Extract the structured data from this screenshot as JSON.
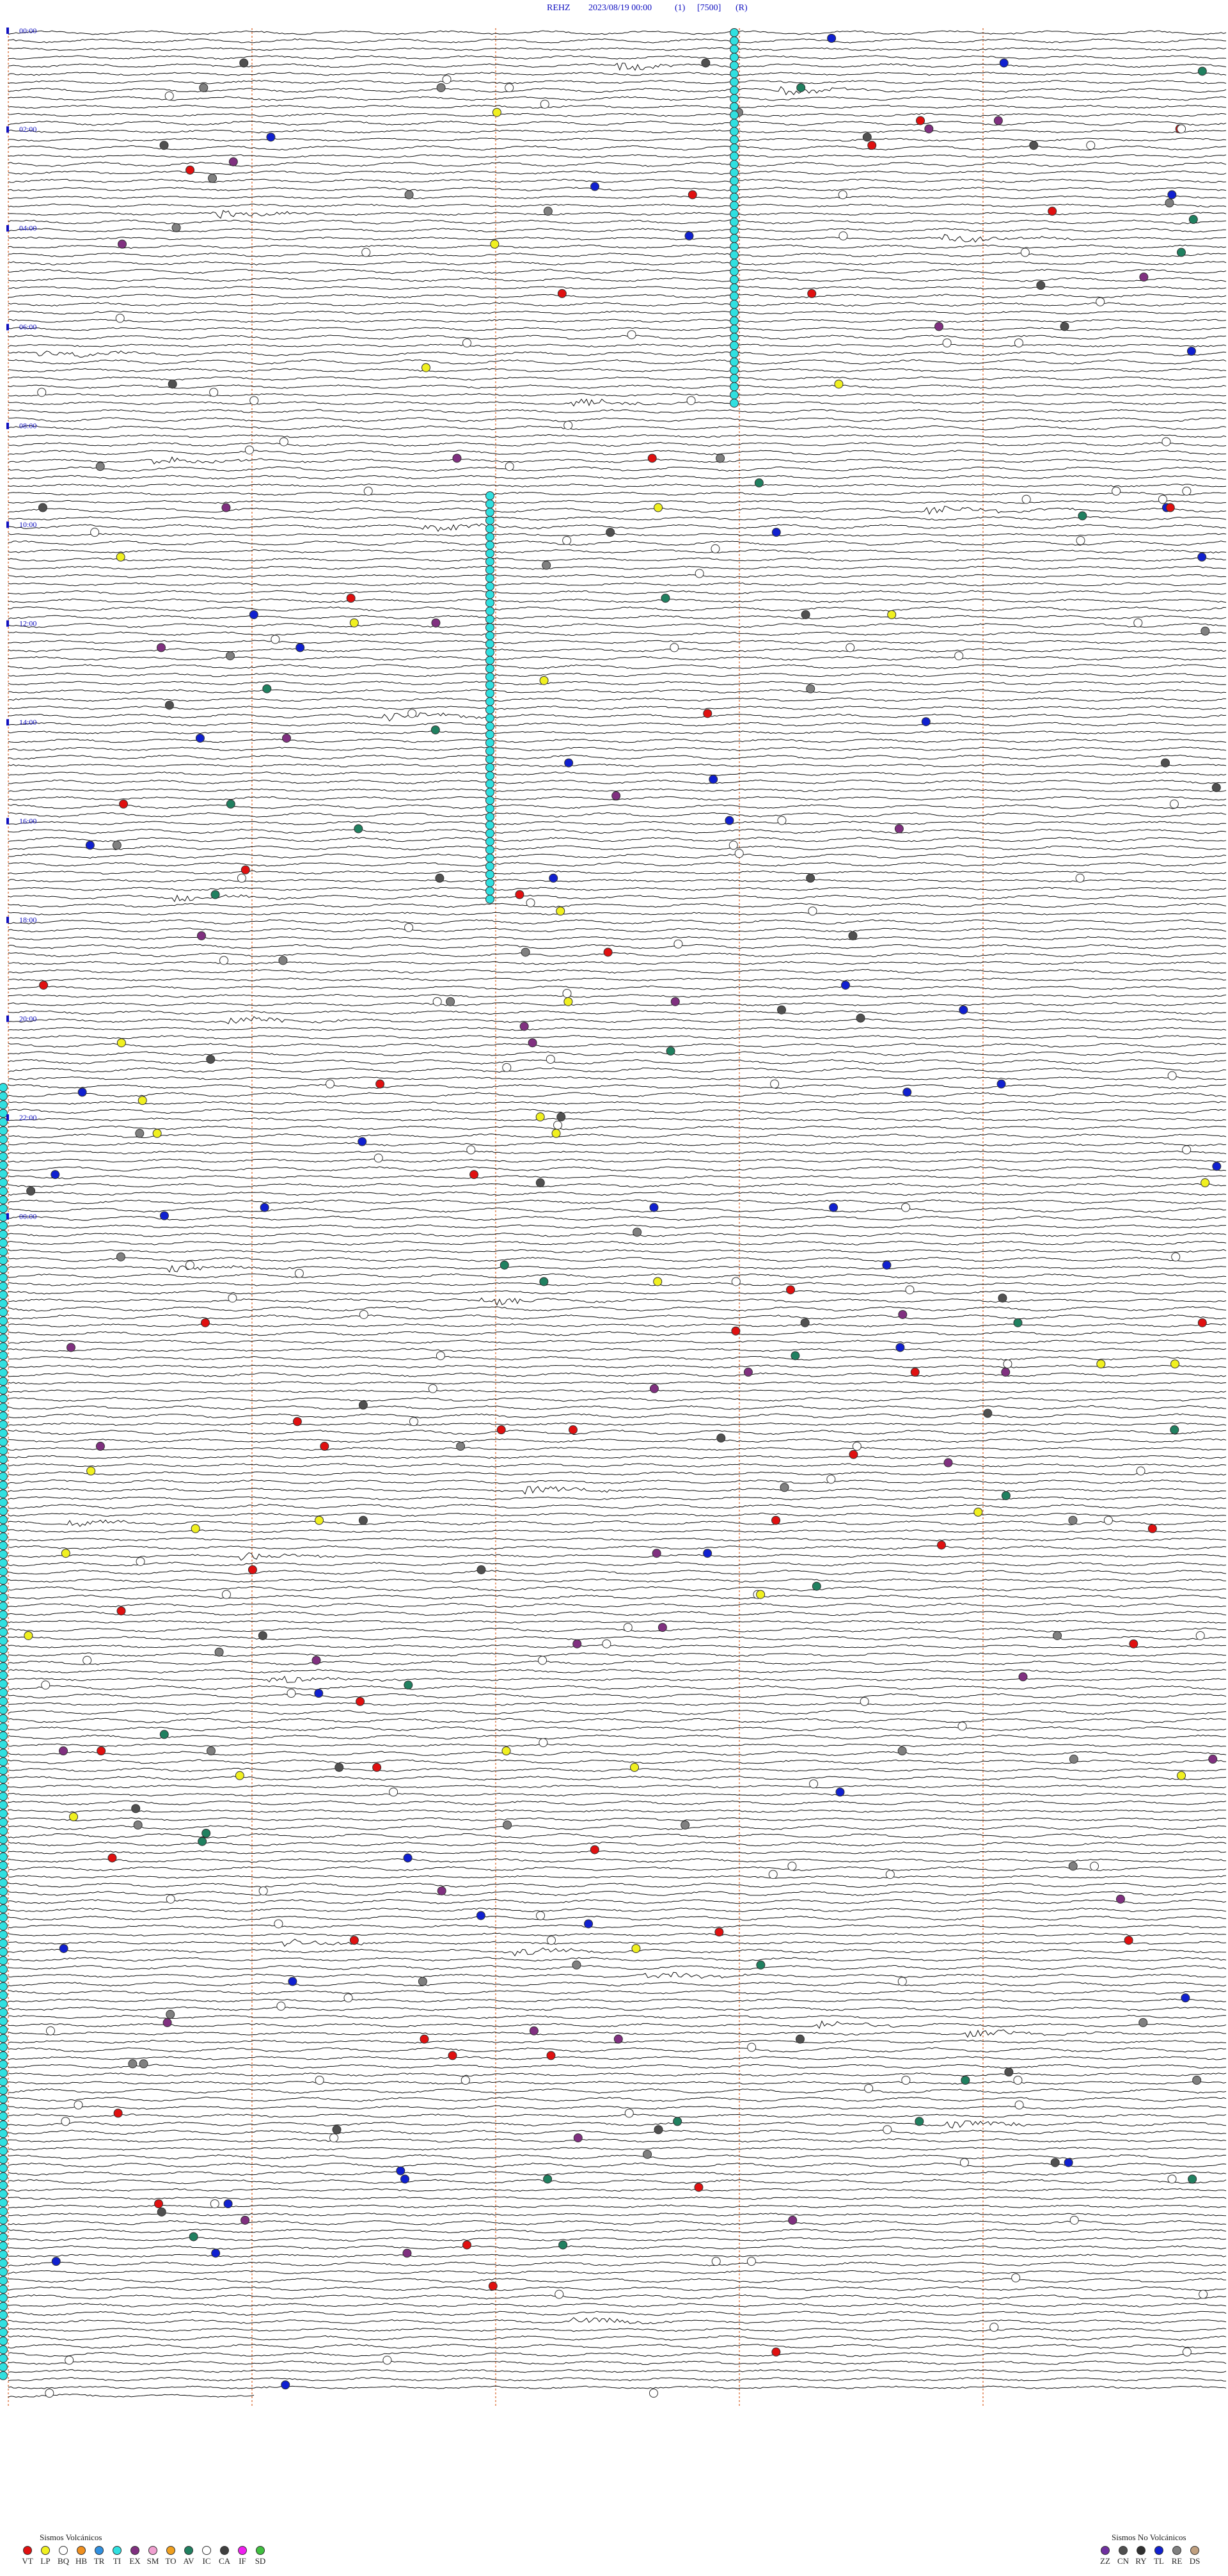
{
  "header": {
    "title": [
      "REHZ",
      "2023/08/19 00:00",
      "(1)",
      "[7500]",
      "(R)"
    ]
  },
  "time_labels": [
    "00:00",
    "02:00",
    "04:00",
    "06:00",
    "08:00",
    "10:00",
    "12:00",
    "14:00",
    "16:00",
    "18:00",
    "20:00",
    "22:00",
    "00:00"
  ],
  "legend_volcanic": {
    "title": "Sismos Volcánicos",
    "items": [
      {
        "label": "VT",
        "color": "#e01010"
      },
      {
        "label": "LP",
        "color": "#f0f020"
      },
      {
        "label": "BQ",
        "color": "#ffffff"
      },
      {
        "label": "HB",
        "color": "#f09020"
      },
      {
        "label": "TR",
        "color": "#3090e0"
      },
      {
        "label": "TI",
        "color": "#30e0e0"
      },
      {
        "label": "EX",
        "color": "#803080"
      },
      {
        "label": "SM",
        "color": "#f0a0d0"
      },
      {
        "label": "TO",
        "color": "#f0a020"
      },
      {
        "label": "AV",
        "color": "#208060"
      },
      {
        "label": "IC",
        "color": "#ffffff"
      },
      {
        "label": "CA",
        "color": "#404040"
      },
      {
        "label": "IF",
        "color": "#f020f0"
      },
      {
        "label": "SD",
        "color": "#40c040"
      }
    ]
  },
  "legend_non_volcanic": {
    "title": "Sismos No Volcánicos",
    "items": [
      {
        "label": "ZZ",
        "color": "#7030a0"
      },
      {
        "label": "CN",
        "color": "#505050"
      },
      {
        "label": "RY",
        "color": "#303030"
      },
      {
        "label": "TL",
        "color": "#1020d0"
      },
      {
        "label": "RE",
        "color": "#808080"
      },
      {
        "label": "DS",
        "color": "#c0a080"
      }
    ]
  }
}
